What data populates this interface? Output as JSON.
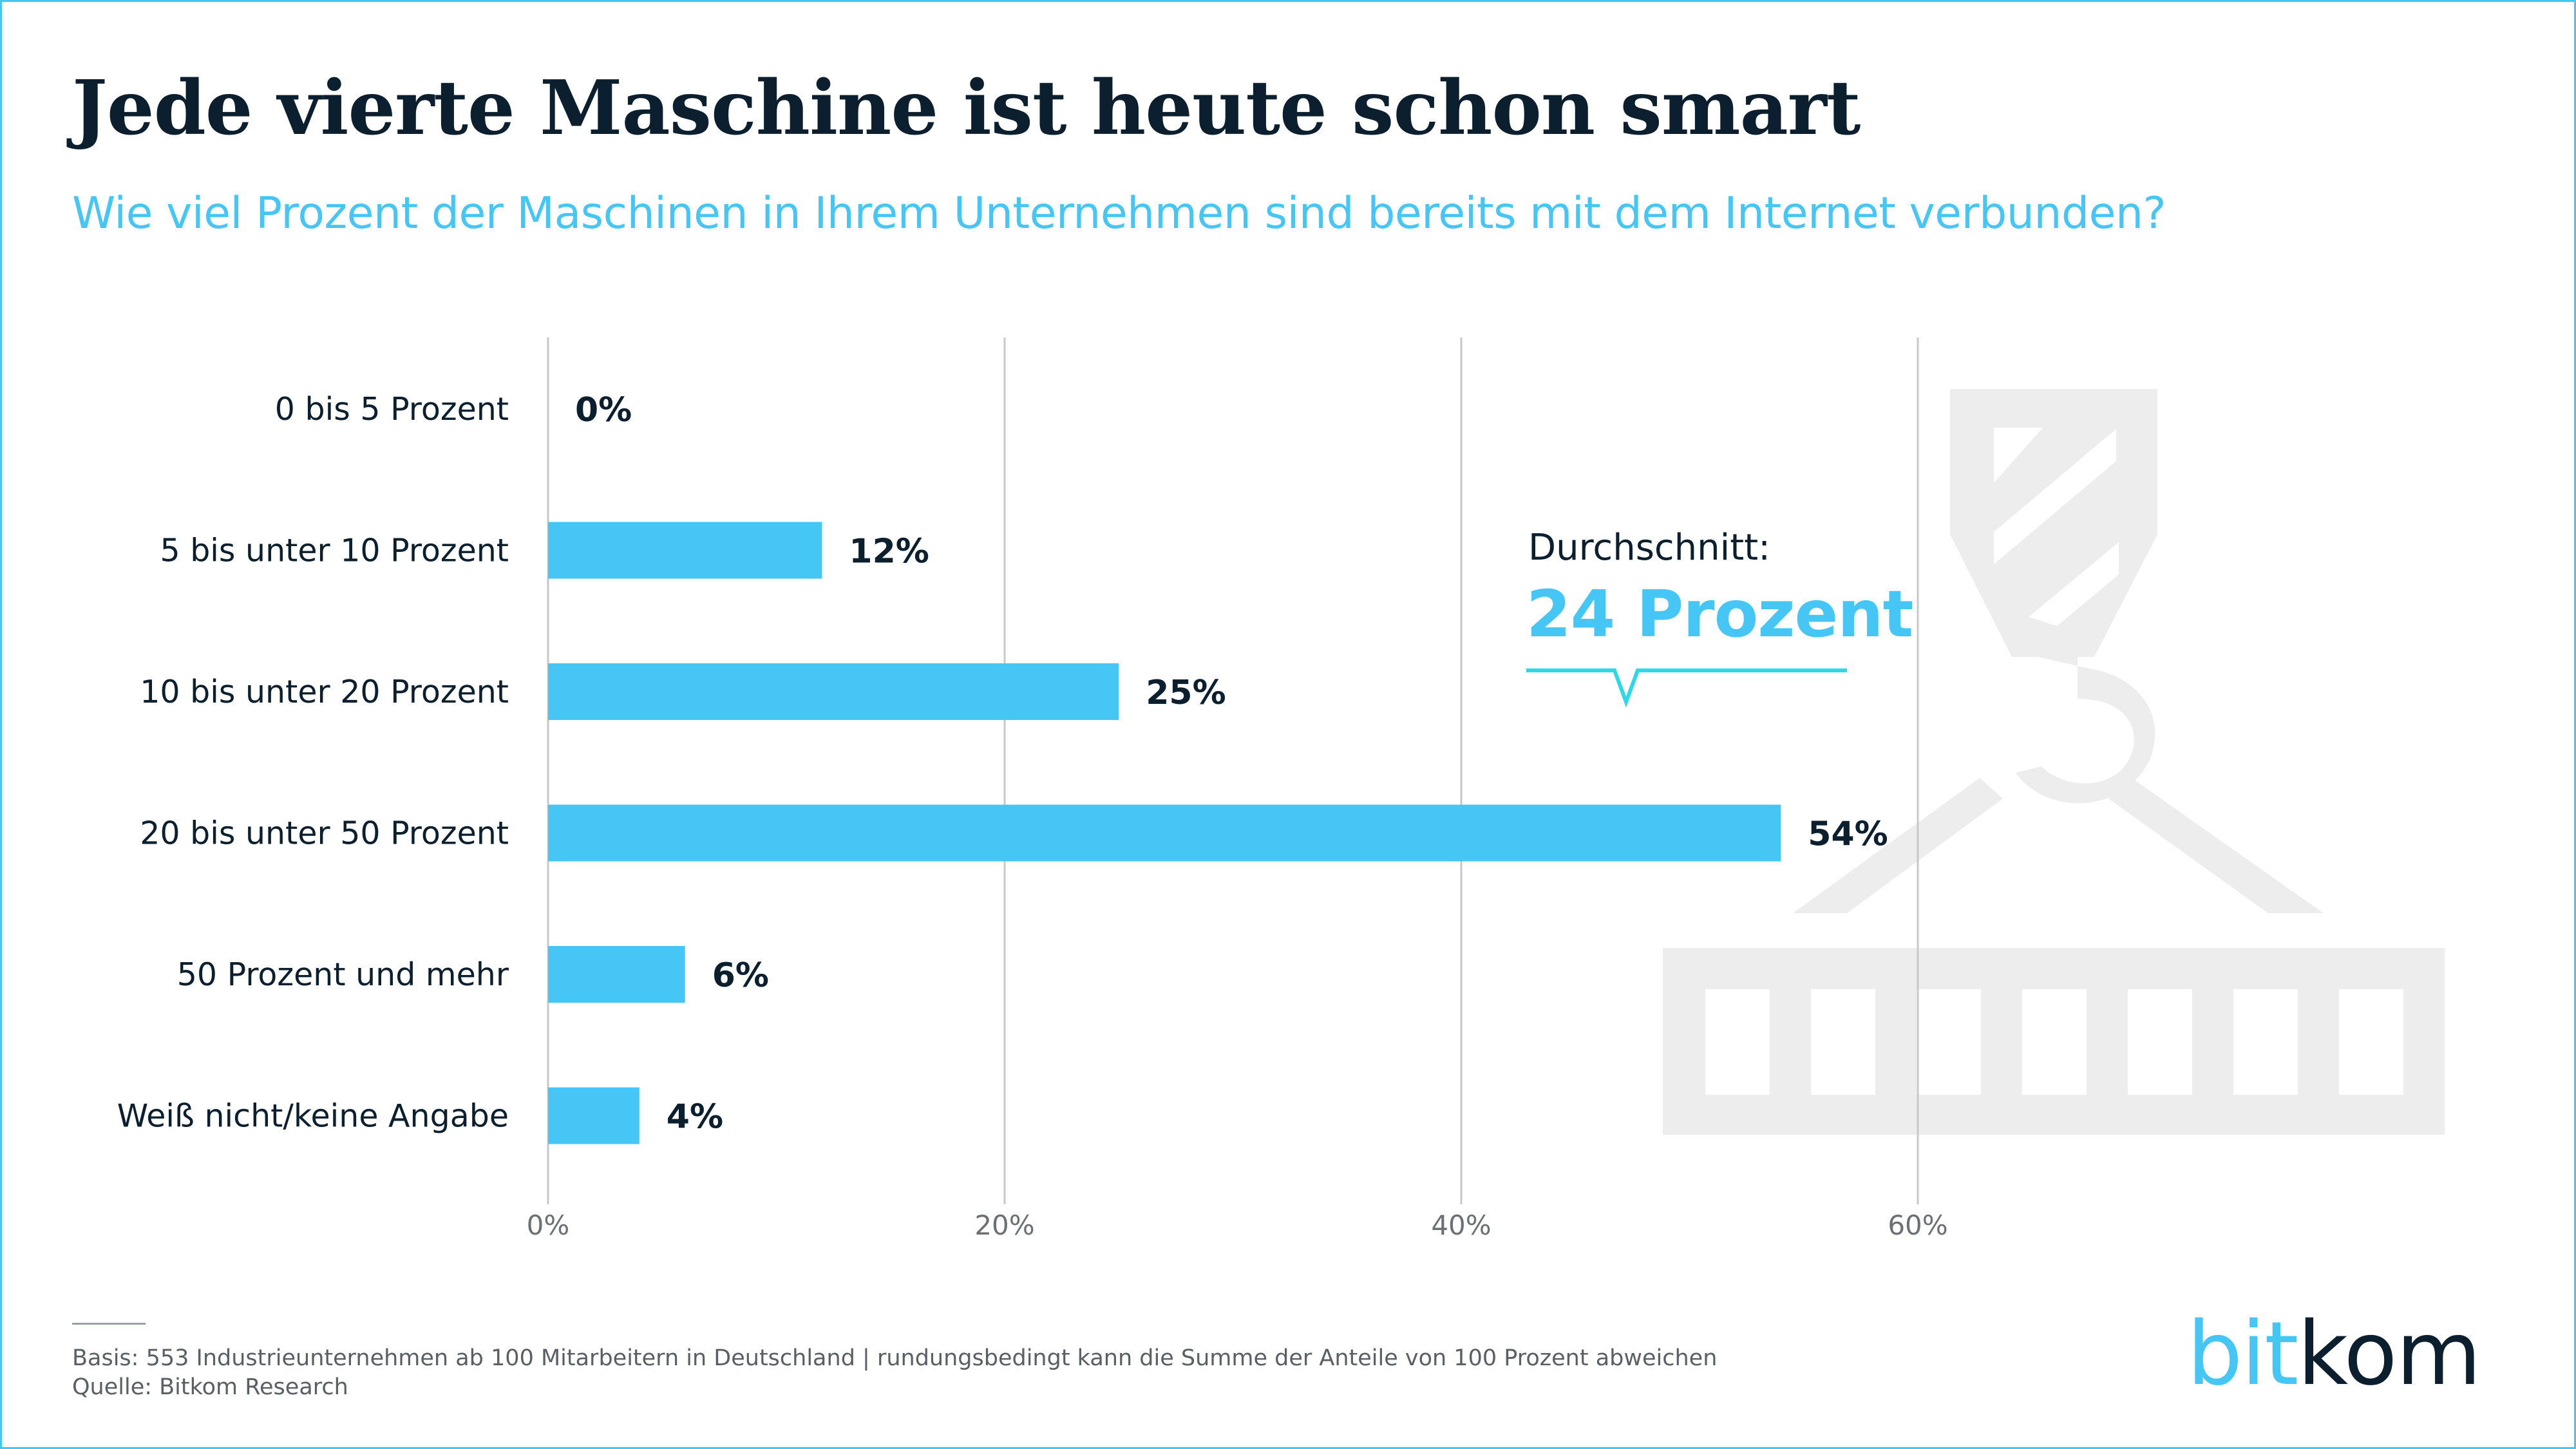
{
  "title": "Jede vierte Maschine ist heute schon smart",
  "subtitle": "Wie viel Prozent der Maschinen in Ihrem Unternehmen sind bereits mit dem Internet verbunden?",
  "annotation": {
    "label": "Durchschnitt:",
    "value": "24 Prozent"
  },
  "footnote": {
    "basis": "Basis: 553 Industrieunternehmen ab 100 Mitarbeitern in Deutschland | rundungsbedingt kann die Summe der Anteile von 100 Prozent abweichen",
    "source": "Quelle: Bitkom Research"
  },
  "logo": {
    "part1": "bit",
    "part2": "kom"
  },
  "colors": {
    "bar": "#45c6f5",
    "title": "#0b1f2e",
    "accent": "#45c6f5",
    "grid": "#c8c8c8",
    "watermark": "#ededed"
  },
  "watermark_icon": "crane-hook-container-icon",
  "chart_data": {
    "type": "bar",
    "orientation": "horizontal",
    "categories": [
      "0 bis 5 Prozent",
      "5 bis unter 10 Prozent",
      "10 bis unter 20 Prozent",
      "20 bis unter 50 Prozent",
      "50 Prozent und mehr",
      "Weiß nicht/keine Angabe"
    ],
    "values": [
      0,
      12,
      25,
      54,
      6,
      4
    ],
    "data_labels": [
      "0%",
      "12%",
      "25%",
      "54%",
      "6%",
      "4%"
    ],
    "x_ticks": [
      0,
      20,
      40,
      60
    ],
    "x_tick_labels": [
      "0%",
      "20%",
      "40%",
      "60%"
    ],
    "xlim": [
      0,
      60
    ],
    "grid": true,
    "legend": "none"
  }
}
